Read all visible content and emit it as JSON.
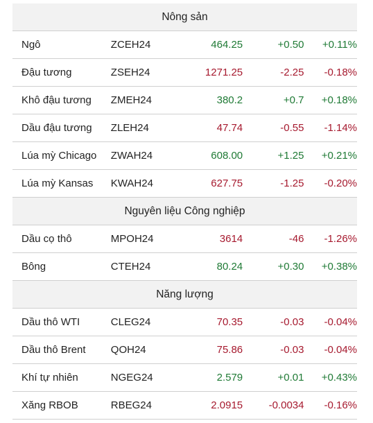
{
  "colors": {
    "up": "#1f7a35",
    "down": "#a6192e",
    "section_bg": "#f2f2f2"
  },
  "sections": [
    {
      "title": "Nông sản",
      "rows": [
        {
          "name": "Ngô",
          "code": "ZCEH24",
          "price": "464.25",
          "change": "+0.50",
          "pct": "+0.11%",
          "dir": "up"
        },
        {
          "name": "Đậu tương",
          "code": "ZSEH24",
          "price": "1271.25",
          "change": "-2.25",
          "pct": "-0.18%",
          "dir": "down"
        },
        {
          "name": "Khô đậu tương",
          "code": "ZMEH24",
          "price": "380.2",
          "change": "+0.7",
          "pct": "+0.18%",
          "dir": "up"
        },
        {
          "name": "Dầu đậu tương",
          "code": "ZLEH24",
          "price": "47.74",
          "change": "-0.55",
          "pct": "-1.14%",
          "dir": "down"
        },
        {
          "name": "Lúa mỳ Chicago",
          "code": "ZWAH24",
          "price": "608.00",
          "change": "+1.25",
          "pct": "+0.21%",
          "dir": "up"
        },
        {
          "name": "Lúa mỳ Kansas",
          "code": "KWAH24",
          "price": "627.75",
          "change": "-1.25",
          "pct": "-0.20%",
          "dir": "down"
        }
      ]
    },
    {
      "title": "Nguyên liệu Công nghiệp",
      "rows": [
        {
          "name": "Dầu cọ thô",
          "code": "MPOH24",
          "price": "3614",
          "change": "-46",
          "pct": "-1.26%",
          "dir": "down"
        },
        {
          "name": "Bông",
          "code": "CTEH24",
          "price": "80.24",
          "change": "+0.30",
          "pct": "+0.38%",
          "dir": "up"
        }
      ]
    },
    {
      "title": "Năng lượng",
      "rows": [
        {
          "name": "Dầu thô WTI",
          "code": "CLEG24",
          "price": "70.35",
          "change": "-0.03",
          "pct": "-0.04%",
          "dir": "down"
        },
        {
          "name": "Dầu thô Brent",
          "code": "QOH24",
          "price": "75.86",
          "change": "-0.03",
          "pct": "-0.04%",
          "dir": "down"
        },
        {
          "name": "Khí tự nhiên",
          "code": "NGEG24",
          "price": "2.579",
          "change": "+0.01",
          "pct": "+0.43%",
          "dir": "up"
        },
        {
          "name": "Xăng RBOB",
          "code": "RBEG24",
          "price": "2.0915",
          "change": "-0.0034",
          "pct": "-0.16%",
          "dir": "down"
        }
      ]
    }
  ]
}
